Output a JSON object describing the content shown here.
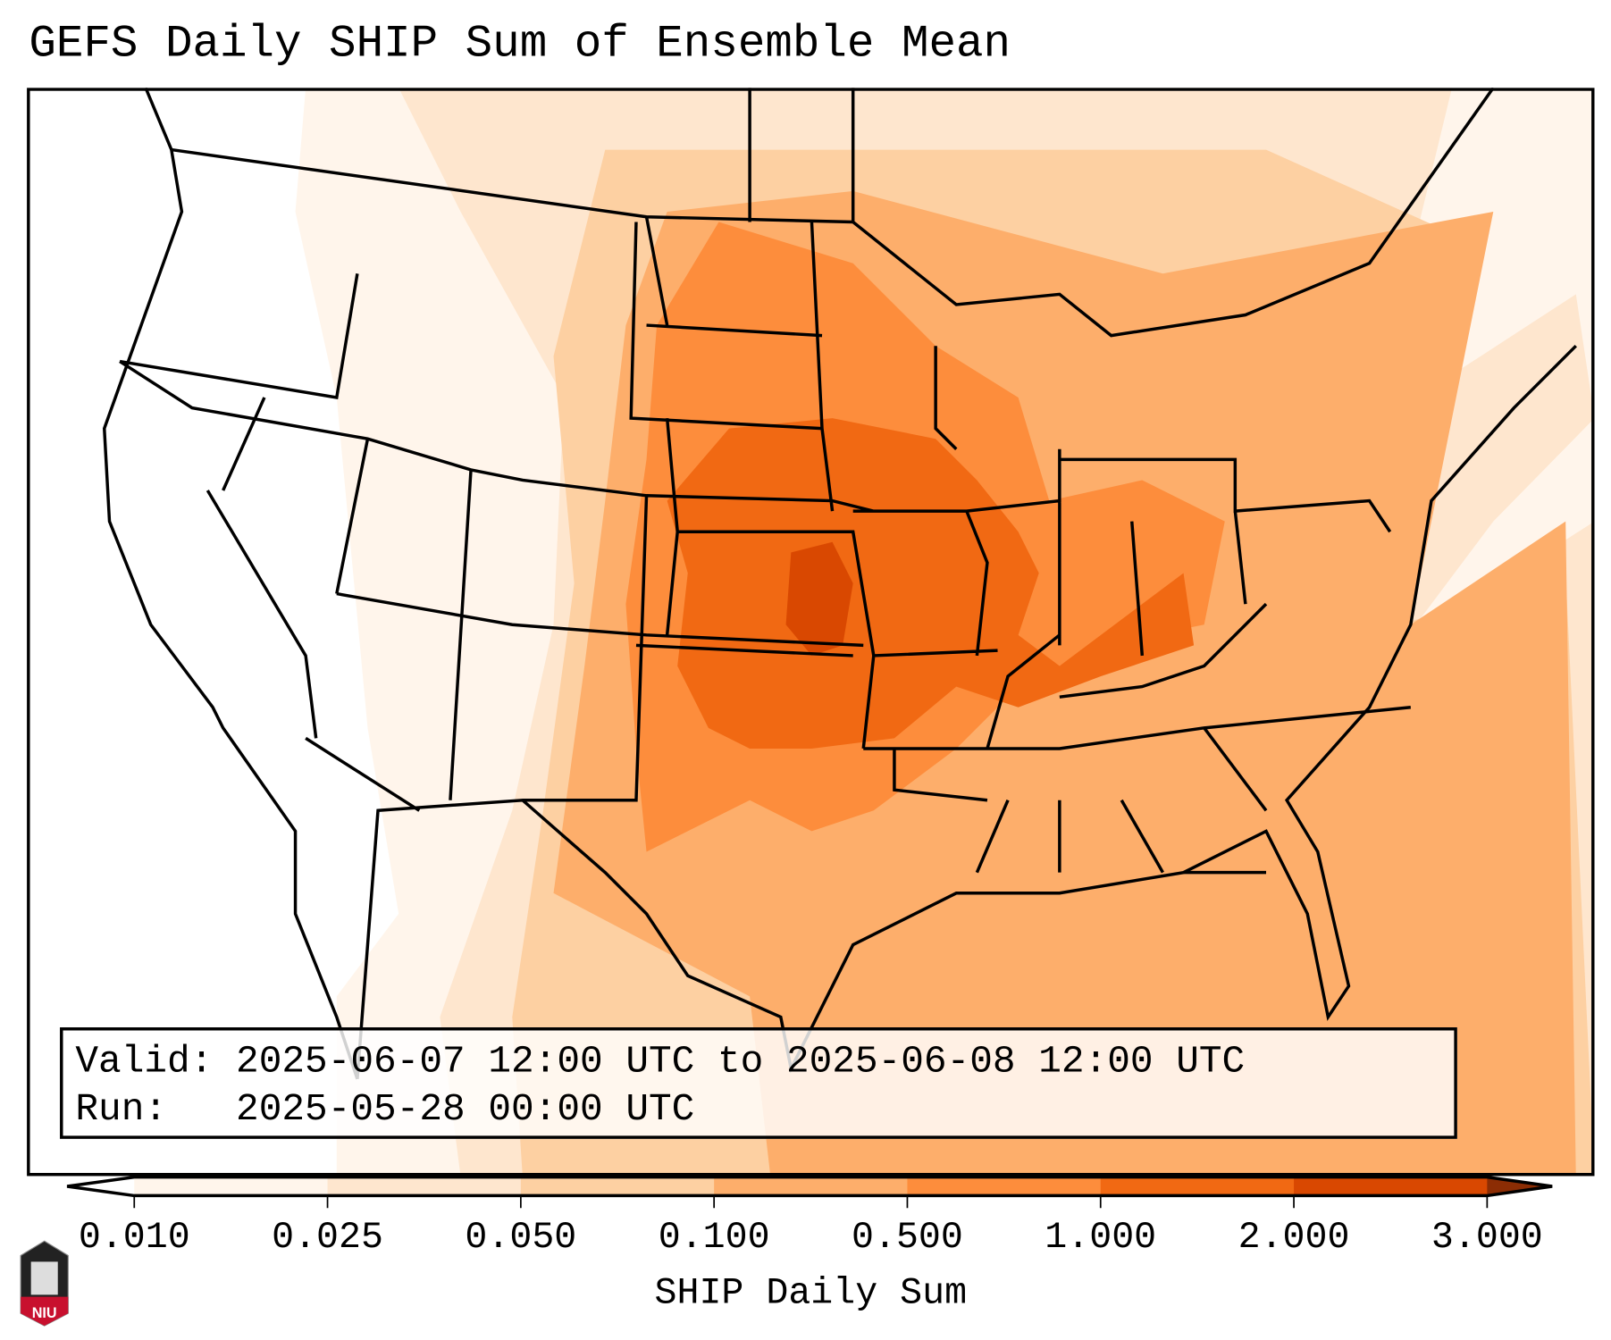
{
  "title": "GEFS Daily SHIP Sum of Ensemble Mean",
  "info": {
    "valid_label": "Valid:",
    "valid_value": "2025-06-07 12:00 UTC to 2025-06-08 12:00 UTC",
    "run_label": "Run:",
    "run_value": "2025-05-28 00:00 UTC"
  },
  "colorbar": {
    "label": "SHIP Daily Sum",
    "ticks": [
      "0.010",
      "0.025",
      "0.050",
      "0.100",
      "0.500",
      "1.000",
      "2.000",
      "3.000"
    ],
    "colors": [
      "#fff5eb",
      "#fee6ce",
      "#fdd0a2",
      "#fdae6b",
      "#fd8d3c",
      "#f16913",
      "#d94801"
    ],
    "under_color": "#ffffff",
    "over_color": "#8c2d04"
  },
  "logo": {
    "text": "NIU"
  }
}
